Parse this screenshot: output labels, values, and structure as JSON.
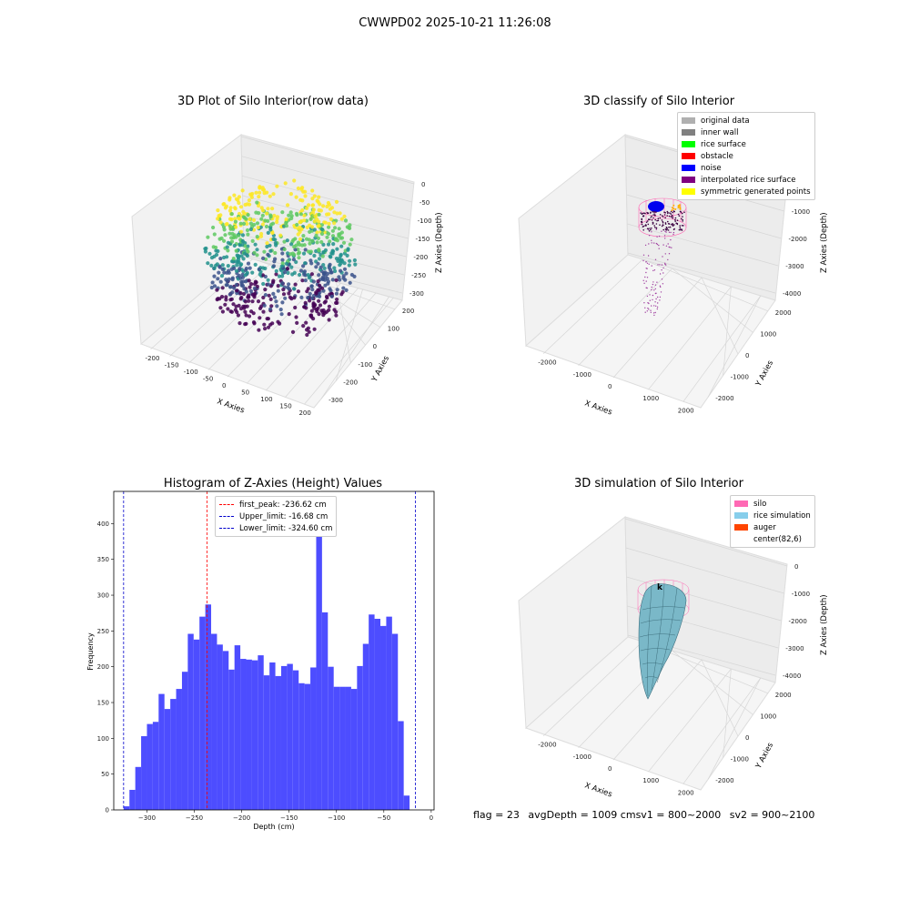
{
  "suptitle": "CWWPD02 2025-10-21 11:26:08",
  "colors": {
    "viridis": [
      "#440154",
      "#3b528b",
      "#21918c",
      "#5ec962",
      "#fde725"
    ],
    "hist_bar": "#4d4dff",
    "peak_line": "#ff0000",
    "limit_line": "#0000cc",
    "silo": "#ff69b4",
    "rice": "#7ab8c8",
    "auger": "#ff4500"
  },
  "panels": {
    "raw": {
      "title": "3D Plot of Silo Interior(row data)",
      "xlabel": "X Axies",
      "ylabel": "Y Axies",
      "zlabel": "Z Axies (Depth)",
      "xticks": [
        "-200",
        "-150",
        "-100",
        "-50",
        "0",
        "50",
        "100",
        "150",
        "200"
      ],
      "yticks": [
        "200",
        "100",
        "0",
        "-100",
        "-200",
        "-300"
      ],
      "zticks": [
        "0",
        "-50",
        "-100",
        "-150",
        "-200",
        "-250",
        "-300"
      ]
    },
    "classify": {
      "title": "3D classify of Silo Interior",
      "xlabel": "X Axies",
      "ylabel": "Y Axies",
      "zlabel": "Z Axies (Depth)",
      "xticks": [
        "-2000",
        "-1000",
        "0",
        "1000",
        "2000"
      ],
      "yticks": [
        "2000",
        "1000",
        "0",
        "-1000",
        "-2000"
      ],
      "zticks": [
        "0",
        "-1000",
        "-2000",
        "-3000",
        "-4000"
      ],
      "legend": [
        {
          "label": "original data",
          "color": "#b0b0b0"
        },
        {
          "label": "inner wall",
          "color": "#808080"
        },
        {
          "label": "rice surface",
          "color": "#00ff00"
        },
        {
          "label": "obstacle",
          "color": "#ff0000"
        },
        {
          "label": "noise",
          "color": "#0000ff"
        },
        {
          "label": "interpolated rice surface",
          "color": "#800080"
        },
        {
          "label": "symmetric generated points",
          "color": "#ffff00"
        }
      ]
    },
    "histogram": {
      "title": "Histogram of Z-Axies (Height) Values",
      "legend": [
        {
          "label": "first_peak: -236.62 cm",
          "color": "#ff0000"
        },
        {
          "label": "Upper_limit: -16.68 cm",
          "color": "#0000cc"
        },
        {
          "label": "Lower_limit: -324.60 cm",
          "color": "#0000cc"
        }
      ]
    },
    "simulation": {
      "title": "3D simulation of Silo Interior",
      "xlabel": "X Axies",
      "ylabel": "Y Axies",
      "zlabel": "Z Axies (Depth)",
      "xticks": [
        "-2000",
        "-1000",
        "0",
        "1000",
        "2000"
      ],
      "yticks": [
        "2000",
        "1000",
        "0",
        "-1000",
        "-2000"
      ],
      "zticks": [
        "0",
        "-1000",
        "-2000",
        "-3000",
        "-4000"
      ],
      "legend": [
        {
          "label": "silo",
          "color": "#ff69b4"
        },
        {
          "label": "rice simulation",
          "color": "#87ceeb"
        },
        {
          "label": "auger",
          "color": "#ff4500"
        },
        {
          "label": "center(82,6)",
          "color": ""
        }
      ]
    }
  },
  "footer": {
    "flag": "flag = 23",
    "avg": "avgDepth = 1009 cm",
    "sv1": "sv1 = 800~2000",
    "sv2": "sv2 = 900~2100"
  },
  "chart_data": {
    "type": "bar",
    "title": "Histogram of Z-Axies (Height) Values",
    "xlabel": "Depth (cm)",
    "ylabel": "Frequency",
    "xlim": [
      -335,
      3
    ],
    "ylim": [
      0,
      445
    ],
    "xticks": [
      -300,
      -250,
      -200,
      -150,
      -100,
      -50,
      0
    ],
    "yticks": [
      0,
      50,
      100,
      150,
      200,
      250,
      300,
      350,
      400
    ],
    "bin_start": -324.6,
    "bin_width": 6.158,
    "values": [
      5,
      28,
      60,
      103,
      120,
      123,
      162,
      141,
      155,
      169,
      193,
      246,
      238,
      270,
      287,
      246,
      231,
      222,
      196,
      230,
      211,
      210,
      209,
      216,
      188,
      206,
      187,
      201,
      204,
      195,
      177,
      176,
      199,
      427,
      276,
      200,
      172,
      172,
      172,
      169,
      201,
      232,
      273,
      267,
      257,
      270,
      246,
      124,
      20
    ],
    "lines": [
      {
        "name": "first_peak",
        "x": -236.62
      },
      {
        "name": "Upper_limit",
        "x": -16.68
      },
      {
        "name": "Lower_limit",
        "x": -324.6
      }
    ]
  }
}
